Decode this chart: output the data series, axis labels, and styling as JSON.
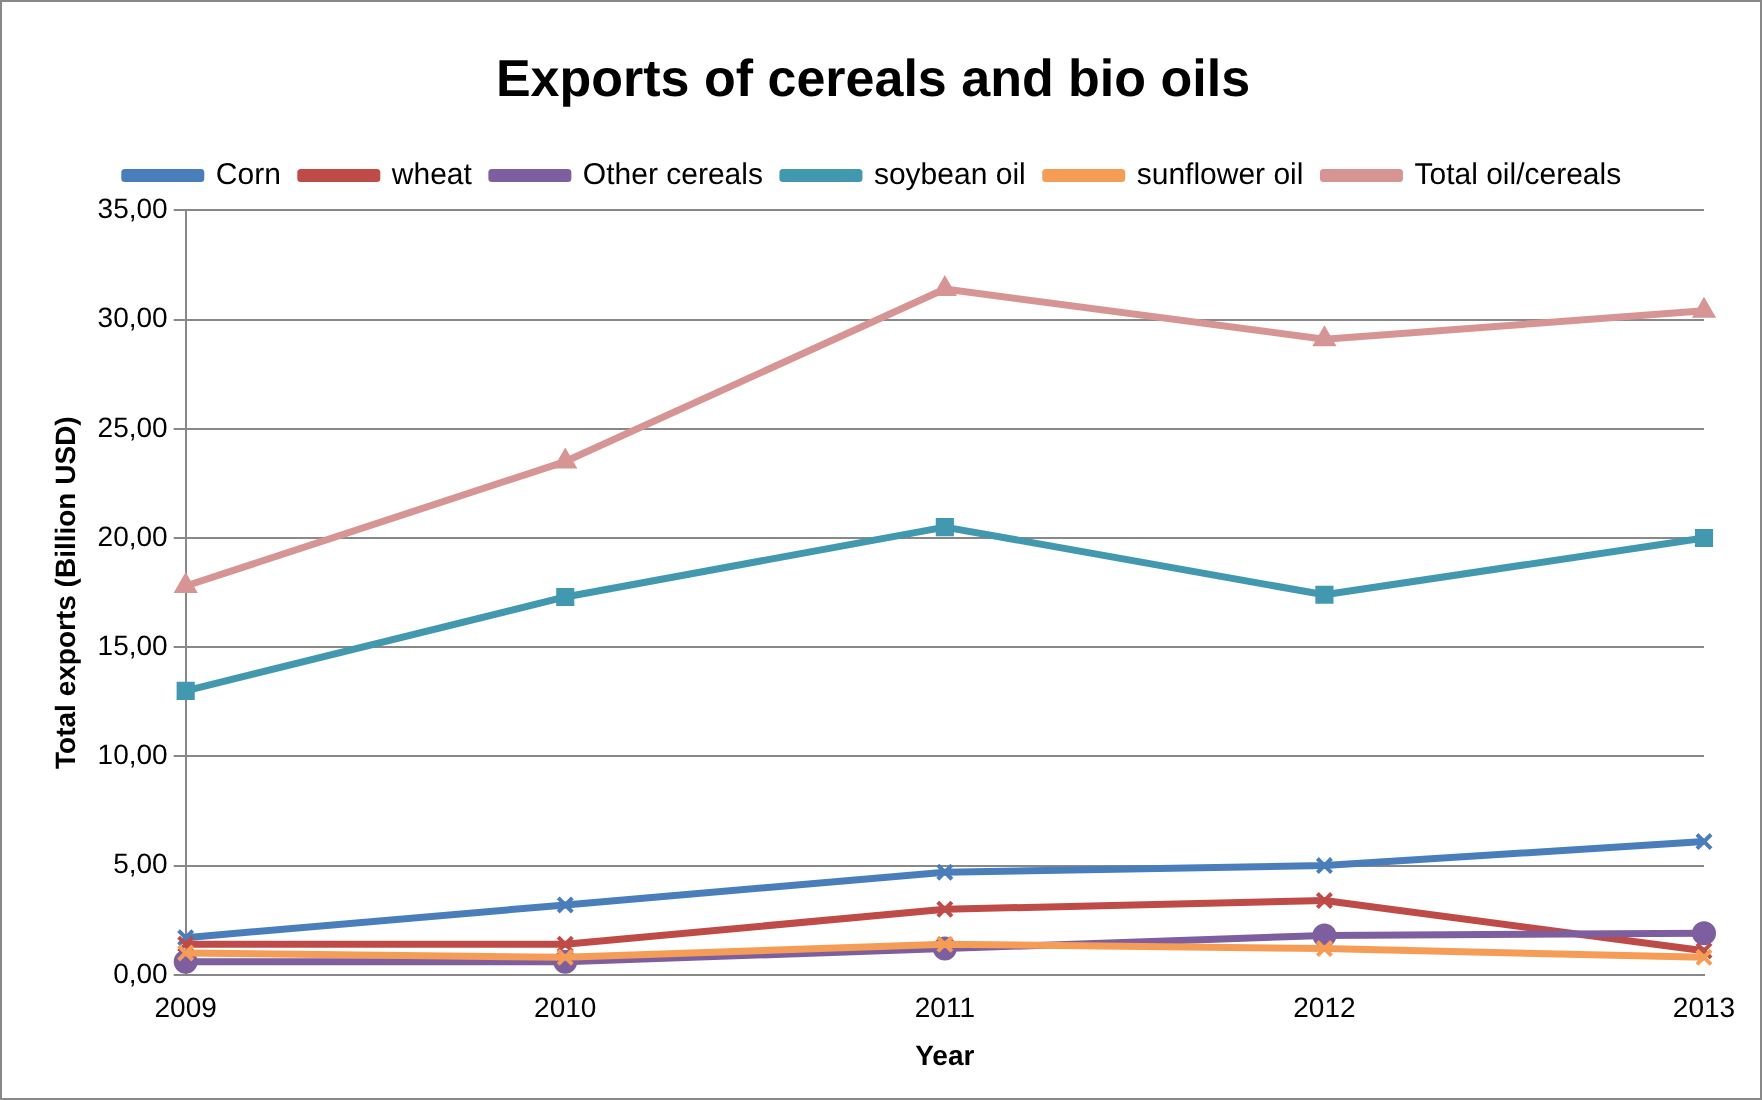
{
  "chart_data": {
    "type": "line",
    "title": "Exports of cereals and bio oils",
    "xlabel": "Year",
    "ylabel": "Total exports (Billion USD)",
    "categories": [
      "2009",
      "2010",
      "2011",
      "2012",
      "2013"
    ],
    "series": [
      {
        "name": "Corn",
        "color": "#4a7ebb",
        "marker": "cross",
        "values": [
          1.7,
          3.2,
          4.7,
          5.0,
          6.1
        ]
      },
      {
        "name": "wheat",
        "color": "#be4b48",
        "marker": "cross",
        "values": [
          1.4,
          1.4,
          3.0,
          3.4,
          1.1
        ]
      },
      {
        "name": "Other cereals",
        "color": "#7d5fa0",
        "marker": "circle",
        "values": [
          0.6,
          0.6,
          1.2,
          1.8,
          1.9
        ]
      },
      {
        "name": "soybean oil",
        "color": "#4198af",
        "marker": "square",
        "values": [
          13.0,
          17.3,
          20.5,
          17.4,
          20.0
        ]
      },
      {
        "name": "sunflower oil",
        "color": "#f59d56",
        "marker": "cross",
        "values": [
          1.0,
          0.8,
          1.4,
          1.2,
          0.8
        ]
      },
      {
        "name": "Total oil/cereals",
        "color": "#d69594",
        "marker": "triangle",
        "values": [
          17.8,
          23.5,
          31.4,
          29.1,
          30.4
        ]
      }
    ],
    "ylim": [
      0,
      35
    ],
    "yticks": [
      {
        "value": 0,
        "label": "0,00"
      },
      {
        "value": 5,
        "label": "5,00"
      },
      {
        "value": 10,
        "label": "10,00"
      },
      {
        "value": 15,
        "label": "15,00"
      },
      {
        "value": 20,
        "label": "20,00"
      },
      {
        "value": 25,
        "label": "25,00"
      },
      {
        "value": 30,
        "label": "30,00"
      },
      {
        "value": 35,
        "label": "35,00"
      }
    ],
    "grid": "y",
    "legend": "top",
    "line_style": "solid"
  }
}
